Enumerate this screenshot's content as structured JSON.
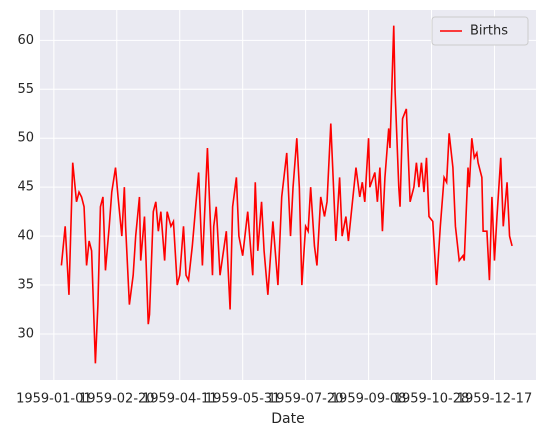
{
  "chart_data": {
    "type": "line",
    "xlabel": "Date",
    "x": [
      "1959-01-07",
      "1959-01-10",
      "1959-01-13",
      "1959-01-16",
      "1959-01-19",
      "1959-01-21",
      "1959-01-23",
      "1959-01-25",
      "1959-01-27",
      "1959-01-29",
      "1959-01-31",
      "1959-02-03",
      "1959-02-05",
      "1959-02-07",
      "1959-02-09",
      "1959-02-11",
      "1959-02-14",
      "1959-02-16",
      "1959-02-19",
      "1959-02-21",
      "1959-02-24",
      "1959-02-26",
      "1959-02-27",
      "1959-03-02",
      "1959-03-05",
      "1959-03-07",
      "1959-03-10",
      "1959-03-11",
      "1959-03-14",
      "1959-03-17",
      "1959-03-18",
      "1959-03-21",
      "1959-03-23",
      "1959-03-25",
      "1959-03-27",
      "1959-03-30",
      "1959-04-01",
      "1959-04-04",
      "1959-04-06",
      "1959-04-09",
      "1959-04-11",
      "1959-04-14",
      "1959-04-16",
      "1959-04-18",
      "1959-04-21",
      "1959-04-26",
      "1959-04-29",
      "1959-05-03",
      "1959-05-07",
      "1959-05-08",
      "1959-05-10",
      "1959-05-13",
      "1959-05-18",
      "1959-05-21",
      "1959-05-23",
      "1959-05-26",
      "1959-05-28",
      "1959-05-31",
      "1959-06-04",
      "1959-06-08",
      "1959-06-10",
      "1959-06-12",
      "1959-06-15",
      "1959-06-17",
      "1959-06-20",
      "1959-06-24",
      "1959-06-28",
      "1959-07-01",
      "1959-07-05",
      "1959-07-08",
      "1959-07-10",
      "1959-07-13",
      "1959-07-15",
      "1959-07-17",
      "1959-07-20",
      "1959-07-22",
      "1959-07-24",
      "1959-07-27",
      "1959-07-29",
      "1959-08-01",
      "1959-08-04",
      "1959-08-06",
      "1959-08-09",
      "1959-08-13",
      "1959-08-16",
      "1959-08-18",
      "1959-08-21",
      "1959-08-23",
      "1959-08-25",
      "1959-08-29",
      "1959-09-01",
      "1959-09-03",
      "1959-09-05",
      "1959-09-08",
      "1959-09-09",
      "1959-09-13",
      "1959-09-15",
      "1959-09-17",
      "1959-09-19",
      "1959-09-21",
      "1959-09-24",
      "1959-09-25",
      "1959-09-28",
      "1959-09-29",
      "1959-10-02",
      "1959-10-03",
      "1959-10-05",
      "1959-10-08",
      "1959-10-11",
      "1959-10-14",
      "1959-10-16",
      "1959-10-18",
      "1959-10-20",
      "1959-10-22",
      "1959-10-24",
      "1959-10-26",
      "1959-10-29",
      "1959-11-01",
      "1959-11-04",
      "1959-11-07",
      "1959-11-09",
      "1959-11-11",
      "1959-11-14",
      "1959-11-16",
      "1959-11-19",
      "1959-11-22",
      "1959-11-23",
      "1959-11-26",
      "1959-11-27",
      "1959-11-29",
      "1959-12-01",
      "1959-12-03",
      "1959-12-04",
      "1959-12-07",
      "1959-12-08",
      "1959-12-11",
      "1959-12-13",
      "1959-12-15",
      "1959-12-17",
      "1959-12-19",
      "1959-12-22",
      "1959-12-24",
      "1959-12-27",
      "1959-12-29",
      "1959-12-31"
    ],
    "series": [
      {
        "name": "Births",
        "color": "#ff0000",
        "values": [
          37,
          41,
          34,
          47.5,
          43.5,
          44.5,
          44,
          43,
          37,
          39.5,
          38.5,
          27,
          33,
          43,
          44,
          36.5,
          41,
          44.5,
          47,
          44,
          40,
          45,
          41,
          33,
          36,
          40,
          44,
          37.5,
          42,
          31,
          32,
          42.5,
          43.5,
          40.5,
          42.5,
          37.5,
          42.5,
          41,
          41.5,
          35,
          36,
          41,
          36,
          35.5,
          39,
          46.5,
          37,
          49,
          36,
          41,
          43,
          36,
          40.5,
          32.5,
          43,
          46,
          40,
          38,
          42.5,
          36,
          45.5,
          38.5,
          43.5,
          38.5,
          34,
          41.5,
          35,
          44,
          48.5,
          40,
          45,
          50,
          45,
          35,
          41,
          40.5,
          45,
          39,
          37,
          44,
          42,
          43.5,
          51.5,
          39.5,
          46,
          40,
          42,
          39.5,
          42,
          47,
          44,
          45.5,
          43.5,
          50,
          45,
          46.5,
          43.5,
          47,
          40.5,
          46,
          51,
          49,
          61.5,
          55,
          45,
          43,
          52,
          53,
          43.5,
          45,
          47.5,
          45,
          47.5,
          44.5,
          48,
          42,
          41.5,
          35,
          41,
          46,
          45.5,
          50.5,
          47,
          41,
          37.5,
          38,
          37.5,
          47,
          45,
          50,
          48,
          48.5,
          47.5,
          46,
          40.5,
          40.5,
          35.5,
          44,
          37.5,
          42,
          48,
          41,
          45.5,
          40,
          39
        ]
      }
    ],
    "xlim": [
      "1958-12-21",
      "1960-01-19"
    ],
    "xticks": [
      "1959-01-01",
      "1959-02-20",
      "1959-04-11",
      "1959-05-31",
      "1959-07-20",
      "1959-09-08",
      "1959-10-28",
      "1959-12-17"
    ],
    "ylim": [
      25.3,
      63.1
    ],
    "yticks": [
      30,
      35,
      40,
      45,
      50,
      55,
      60
    ],
    "grid": true,
    "legend": "upper right"
  }
}
